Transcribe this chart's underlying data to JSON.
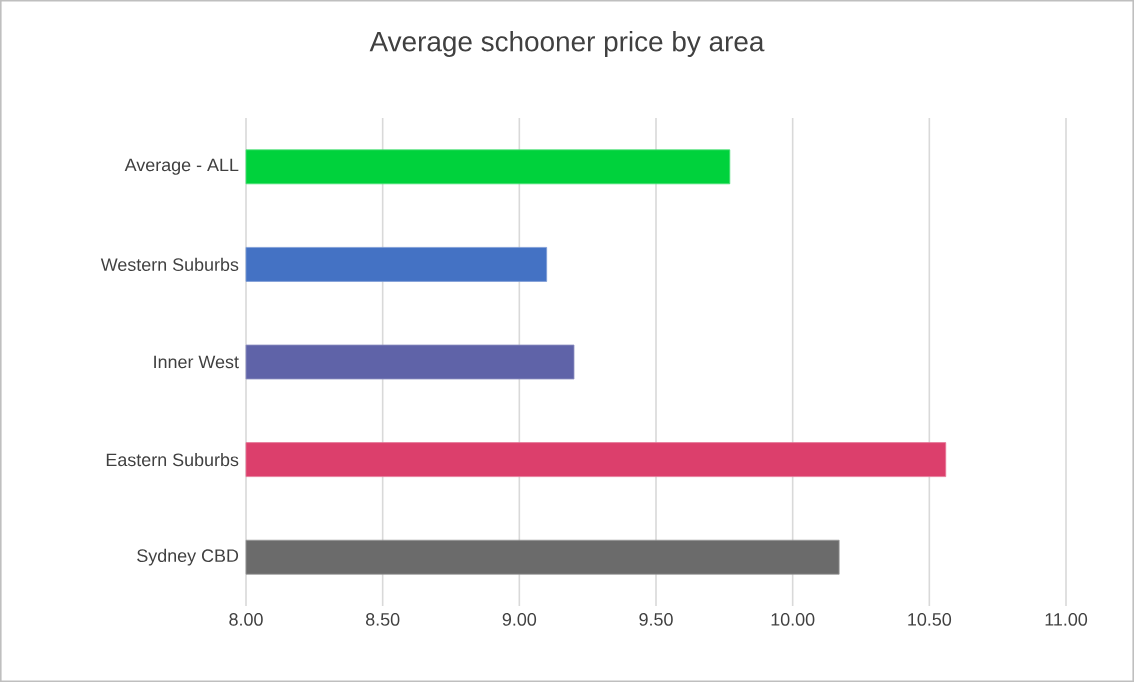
{
  "chart_data": {
    "type": "bar",
    "orientation": "horizontal",
    "title": "Average schooner price by area",
    "categories": [
      "Average - ALL",
      "Western Suburbs",
      "Inner West",
      "Eastern Suburbs",
      "Sydney CBD"
    ],
    "values": [
      9.77,
      9.1,
      9.2,
      10.56,
      10.17
    ],
    "colors": [
      "#00d23c",
      "#4472c4",
      "#5f63a8",
      "#dc3f6c",
      "#6b6b6b"
    ],
    "xlim": [
      8,
      11
    ],
    "xticks": [
      {
        "value": 8,
        "label": "8.00"
      },
      {
        "value": 8.5,
        "label": "8.50"
      },
      {
        "value": 9,
        "label": "9.00"
      },
      {
        "value": 9.5,
        "label": "9.50"
      },
      {
        "value": 10,
        "label": "10.00"
      },
      {
        "value": 10.5,
        "label": "10.50"
      },
      {
        "value": 11,
        "label": "11.00"
      }
    ],
    "grid": "x"
  }
}
